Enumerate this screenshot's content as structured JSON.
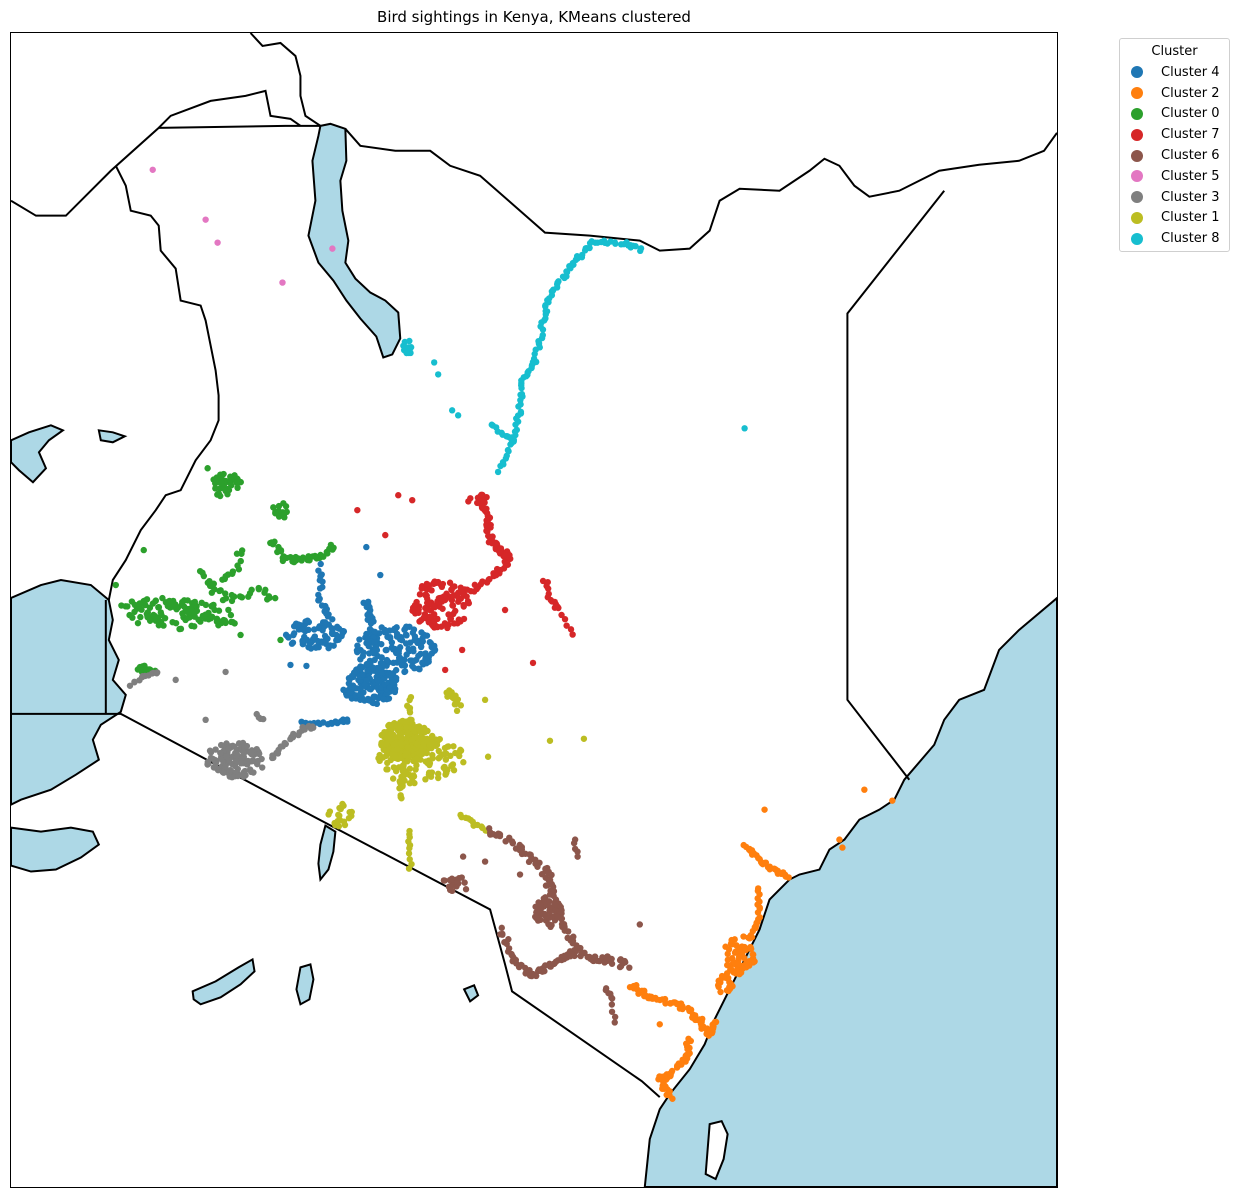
{
  "title": "Bird sightings in Kenya, KMeans clustered",
  "legend": {
    "title": "Cluster",
    "items": [
      {
        "label": "Cluster 4",
        "color": "#1f77b4"
      },
      {
        "label": "Cluster 2",
        "color": "#ff7f0e"
      },
      {
        "label": "Cluster 0",
        "color": "#2ca02c"
      },
      {
        "label": "Cluster 7",
        "color": "#d62728"
      },
      {
        "label": "Cluster 6",
        "color": "#8c564b"
      },
      {
        "label": "Cluster 5",
        "color": "#e377c2"
      },
      {
        "label": "Cluster 3",
        "color": "#7f7f7f"
      },
      {
        "label": "Cluster 1",
        "color": "#bcbd22"
      },
      {
        "label": "Cluster 8",
        "color": "#17becf"
      }
    ]
  },
  "map": {
    "water_color": "#add8e6",
    "land_color": "#ffffff",
    "border_color": "#000000"
  }
}
